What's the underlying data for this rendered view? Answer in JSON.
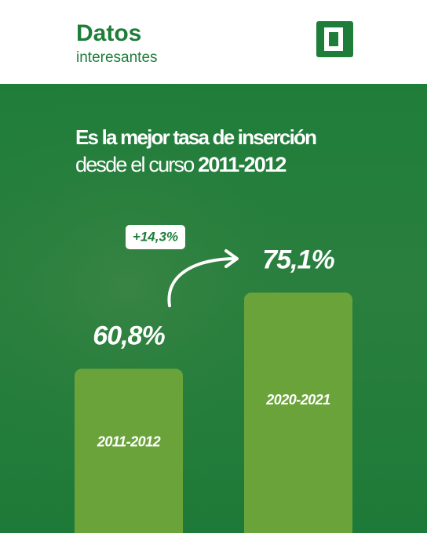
{
  "header": {
    "title": "Datos",
    "subtitle": "interesantes"
  },
  "chart_data": {
    "type": "bar",
    "title": "Es la mejor tasa de inserción",
    "subtitle": {
      "text": "desde el curso",
      "highlight": "2011-2012"
    },
    "annotation": "+14,3%",
    "categories": [
      "2011-2012",
      "2020-2021"
    ],
    "values": [
      60.8,
      75.1
    ],
    "value_labels": [
      "60,8%",
      "75,1%"
    ],
    "color": "#6ba33b",
    "ylim": [
      30,
      80
    ]
  }
}
